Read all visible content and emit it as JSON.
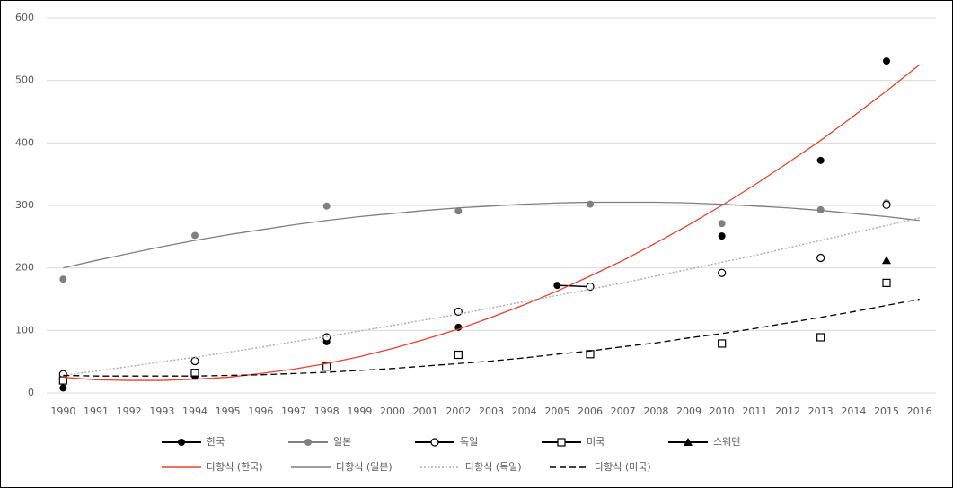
{
  "chart_data": {
    "type": "line",
    "categories": [
      "1990",
      "1991",
      "1992",
      "1993",
      "1994",
      "1995",
      "1996",
      "1997",
      "1998",
      "1999",
      "2000",
      "2001",
      "2002",
      "2003",
      "2004",
      "2005",
      "2006",
      "2007",
      "2008",
      "2009",
      "2010",
      "2011",
      "2012",
      "2013",
      "2014",
      "2015",
      "2016"
    ],
    "ylim": [
      0,
      600
    ],
    "yticks": [
      0,
      100,
      200,
      300,
      400,
      500,
      600
    ],
    "grid": true,
    "series": [
      {
        "name": "한국",
        "color": "#000000",
        "marker": "circle",
        "values": [
          8,
          null,
          null,
          null,
          27,
          null,
          null,
          null,
          82,
          null,
          null,
          null,
          105,
          null,
          null,
          172,
          170,
          null,
          null,
          null,
          251,
          null,
          null,
          372,
          null,
          531,
          null
        ]
      },
      {
        "name": "일본",
        "color": "#808080",
        "marker": "circle",
        "values": [
          182,
          null,
          null,
          null,
          252,
          null,
          null,
          null,
          299,
          null,
          null,
          null,
          291,
          null,
          null,
          null,
          302,
          null,
          null,
          null,
          271,
          null,
          null,
          293,
          null,
          304,
          null
        ]
      },
      {
        "name": "독일",
        "color": "#000000",
        "marker": "circle-open",
        "values": [
          30,
          null,
          null,
          null,
          51,
          null,
          null,
          null,
          89,
          null,
          null,
          null,
          130,
          null,
          null,
          null,
          170,
          null,
          null,
          null,
          192,
          null,
          null,
          216,
          null,
          301,
          null
        ]
      },
      {
        "name": "미국",
        "color": "#000000",
        "marker": "square-open",
        "values": [
          20,
          null,
          null,
          null,
          32,
          null,
          null,
          null,
          42,
          null,
          null,
          null,
          61,
          null,
          null,
          null,
          62,
          null,
          null,
          null,
          79,
          null,
          null,
          89,
          null,
          176,
          null
        ]
      },
      {
        "name": "스웨덴",
        "color": "#000000",
        "marker": "triangle",
        "values": [
          null,
          null,
          null,
          null,
          null,
          null,
          null,
          null,
          null,
          null,
          null,
          null,
          null,
          null,
          null,
          null,
          null,
          null,
          null,
          null,
          null,
          null,
          null,
          null,
          null,
          212,
          null
        ]
      },
      {
        "name": "다항식 (한국)",
        "color": "#e8412c",
        "dash": "solid",
        "values": [
          25,
          21,
          20,
          20,
          22,
          25,
          31,
          38,
          47,
          58,
          71,
          86,
          102,
          121,
          141,
          163,
          187,
          212,
          240,
          269,
          300,
          333,
          368,
          404,
          443,
          483,
          525
        ]
      },
      {
        "name": "다항식 (일본)",
        "color": "#7f7f7f",
        "dash": "solid",
        "values": [
          200,
          212,
          223,
          234,
          244,
          253,
          261,
          269,
          276,
          282,
          287,
          292,
          296,
          299,
          302,
          304,
          305,
          305,
          305,
          304,
          302,
          299,
          296,
          292,
          287,
          282,
          276
        ]
      },
      {
        "name": "다항식 (독일)",
        "color": "#b0b0b0",
        "dash": "dotted",
        "values": [
          28,
          35,
          42,
          50,
          57,
          65,
          73,
          82,
          90,
          99,
          108,
          117,
          126,
          136,
          146,
          156,
          166,
          176,
          187,
          198,
          209,
          220,
          232,
          244,
          256,
          268,
          280
        ]
      },
      {
        "name": "다항식 (미국)",
        "color": "#000000",
        "dash": "dashed",
        "values": [
          28,
          27,
          27,
          27,
          27,
          28,
          29,
          31,
          33,
          36,
          39,
          43,
          47,
          51,
          56,
          62,
          67,
          74,
          80,
          88,
          95,
          103,
          112,
          121,
          130,
          140,
          150
        ]
      }
    ]
  }
}
